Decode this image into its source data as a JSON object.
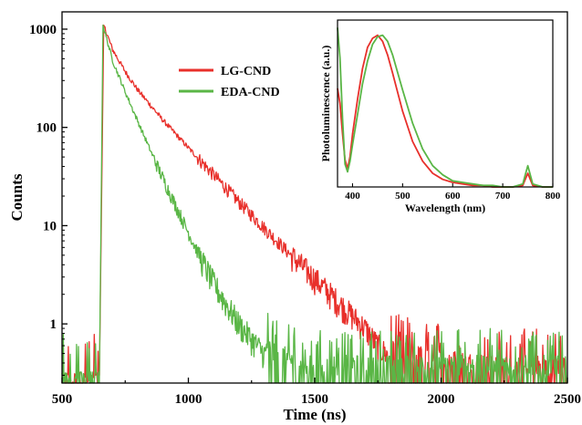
{
  "chart_data": [
    {
      "type": "line",
      "role": "main",
      "xlabel": "Time (ns)",
      "ylabel": "Counts",
      "xlim": [
        500,
        2500
      ],
      "ylim": [
        0.25,
        1500
      ],
      "yscale": "log",
      "xticks": [
        500,
        1000,
        1500,
        2000,
        2500
      ],
      "yticks": [
        1,
        10,
        100,
        1000
      ],
      "legend_position": "top-center",
      "series": [
        {
          "name": "LG-CND",
          "color": "#e8302b",
          "baseline_window": [
            500,
            648
          ],
          "rise": [
            [
              648,
              0.3
            ],
            [
              665,
              1100
            ]
          ],
          "x": [
            665,
            700,
            750,
            800,
            900,
            1000,
            1100,
            1200,
            1300,
            1400,
            1500,
            1600,
            1700,
            1750,
            1800,
            1900,
            2000,
            2100,
            2200
          ],
          "y": [
            1100,
            620,
            370,
            240,
            118,
            62,
            33,
            17.5,
            9.5,
            5.2,
            2.9,
            1.6,
            0.9,
            0.6,
            0.45,
            0.38,
            0.35,
            0.32,
            0.3
          ],
          "noise_floor": 0.3,
          "noise_floor_until": 2500
        },
        {
          "name": "EDA-CND",
          "color": "#5ab646",
          "baseline_window": [
            500,
            648
          ],
          "rise": [
            [
              648,
              0.3
            ],
            [
              662,
              1100
            ]
          ],
          "x": [
            662,
            700,
            750,
            800,
            850,
            900,
            950,
            1000,
            1050,
            1100,
            1150,
            1200,
            1250,
            1300,
            1350,
            1400,
            1450
          ],
          "y": [
            1100,
            480,
            230,
            115,
            58,
            30,
            16,
            8.5,
            4.6,
            2.6,
            1.6,
            1.0,
            0.7,
            0.5,
            0.4,
            0.35,
            0.3
          ],
          "noise_floor": 0.3,
          "noise_floor_until": 2500
        }
      ]
    },
    {
      "type": "line",
      "role": "inset",
      "xlabel": "Wavelength (nm)",
      "ylabel": "Photoluminescence (a.u.)",
      "xlim": [
        370,
        800
      ],
      "ylim": [
        0,
        1.1
      ],
      "xticks": [
        400,
        500,
        600,
        700,
        800
      ],
      "series": [
        {
          "name": "LG-CND",
          "color": "#e8302b",
          "x": [
            370,
            375,
            380,
            385,
            390,
            395,
            400,
            410,
            420,
            430,
            440,
            450,
            460,
            470,
            480,
            500,
            520,
            540,
            560,
            580,
            600,
            620,
            640,
            660,
            680,
            700,
            720,
            740,
            745,
            750,
            755,
            760,
            780,
            800
          ],
          "y": [
            0.65,
            0.55,
            0.35,
            0.18,
            0.12,
            0.2,
            0.35,
            0.58,
            0.78,
            0.92,
            0.98,
            1.0,
            0.96,
            0.87,
            0.75,
            0.5,
            0.3,
            0.17,
            0.09,
            0.05,
            0.03,
            0.02,
            0.01,
            0.01,
            0.0,
            0.0,
            0.0,
            0.01,
            0.05,
            0.09,
            0.05,
            0.01,
            0.0,
            0.0
          ]
        },
        {
          "name": "EDA-CND",
          "color": "#5ab646",
          "x": [
            370,
            375,
            380,
            385,
            390,
            395,
            400,
            410,
            420,
            430,
            440,
            450,
            460,
            470,
            480,
            500,
            520,
            540,
            560,
            580,
            600,
            620,
            640,
            660,
            680,
            700,
            720,
            740,
            745,
            750,
            755,
            760,
            780,
            800
          ],
          "y": [
            1.05,
            0.85,
            0.45,
            0.15,
            0.1,
            0.17,
            0.28,
            0.48,
            0.68,
            0.83,
            0.94,
            0.99,
            1.0,
            0.96,
            0.87,
            0.64,
            0.42,
            0.25,
            0.14,
            0.08,
            0.04,
            0.03,
            0.02,
            0.01,
            0.01,
            0.0,
            0.0,
            0.02,
            0.08,
            0.14,
            0.08,
            0.02,
            0.0,
            0.0
          ]
        }
      ]
    }
  ]
}
